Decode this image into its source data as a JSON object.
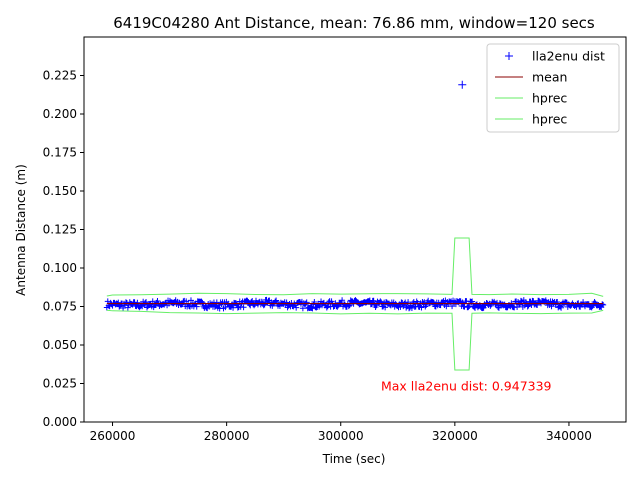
{
  "chart_data": {
    "type": "line",
    "title": "6419C04280 Ant Distance, mean: 76.86 mm, window=120 secs",
    "xlabel": "Time (sec)",
    "ylabel": "Antenna Distance (m)",
    "xlim": [
      255000,
      350000
    ],
    "ylim": [
      0.0,
      0.25
    ],
    "xticks": [
      260000,
      280000,
      300000,
      320000,
      340000
    ],
    "xtick_labels": [
      "260000",
      "280000",
      "300000",
      "320000",
      "340000"
    ],
    "yticks": [
      0.0,
      0.025,
      0.05,
      0.075,
      0.1,
      0.125,
      0.15,
      0.175,
      0.2,
      0.225
    ],
    "ytick_labels": [
      "0.000",
      "0.025",
      "0.050",
      "0.075",
      "0.100",
      "0.125",
      "0.150",
      "0.175",
      "0.200",
      "0.225"
    ],
    "grid": false,
    "legend_position": "top-right",
    "legend": [
      {
        "label": "lla2enu dist",
        "marker": "+",
        "color": "#0000ff"
      },
      {
        "label": "mean",
        "marker": "line",
        "color": "#8b0000"
      },
      {
        "label": "hprec",
        "marker": "line",
        "color": "#66ee66"
      },
      {
        "label": "hprec",
        "marker": "line",
        "color": "#66ee66"
      }
    ],
    "annotation": {
      "text": "Max lla2enu dist: 0.947339",
      "x": 322000,
      "y": 0.0205,
      "color": "#ff0000"
    },
    "series": [
      {
        "name": "lla2enu dist",
        "style": "dense-plus-markers",
        "color": "#0000ff",
        "x_range": [
          259000,
          346000
        ],
        "band_center": 0.0765,
        "band_halfwidth": 0.0022,
        "outliers": [
          {
            "x": 321300,
            "y": 0.219
          }
        ]
      },
      {
        "name": "mean",
        "style": "line",
        "color": "#8b0000",
        "x": [
          259000,
          346000
        ],
        "y": [
          0.0769,
          0.0769
        ]
      },
      {
        "name": "hprec",
        "style": "line",
        "color": "#66ee66",
        "x": [
          259000,
          260000,
          265000,
          270000,
          275000,
          280000,
          285000,
          290000,
          295000,
          300000,
          305000,
          310000,
          315000,
          319500,
          320000,
          322500,
          323000,
          326000,
          330000,
          335000,
          340000,
          344000,
          346000
        ],
        "y": [
          0.0818,
          0.0825,
          0.0826,
          0.083,
          0.0836,
          0.0834,
          0.0828,
          0.0826,
          0.0834,
          0.083,
          0.0833,
          0.0834,
          0.0832,
          0.0829,
          0.1195,
          0.1195,
          0.0829,
          0.0827,
          0.0831,
          0.0827,
          0.0829,
          0.0836,
          0.0816
        ]
      },
      {
        "name": "hprec",
        "style": "line",
        "color": "#66ee66",
        "x": [
          259000,
          260000,
          265000,
          270000,
          275000,
          280000,
          285000,
          290000,
          295000,
          300000,
          305000,
          310000,
          315000,
          319500,
          320000,
          322500,
          323000,
          326000,
          330000,
          335000,
          340000,
          344000,
          346000
        ],
        "y": [
          0.0726,
          0.0722,
          0.0718,
          0.071,
          0.0708,
          0.0704,
          0.0707,
          0.071,
          0.0708,
          0.0702,
          0.0706,
          0.0702,
          0.0707,
          0.0706,
          0.0338,
          0.0338,
          0.0706,
          0.0709,
          0.0706,
          0.0704,
          0.0707,
          0.0708,
          0.0725
        ]
      }
    ]
  }
}
